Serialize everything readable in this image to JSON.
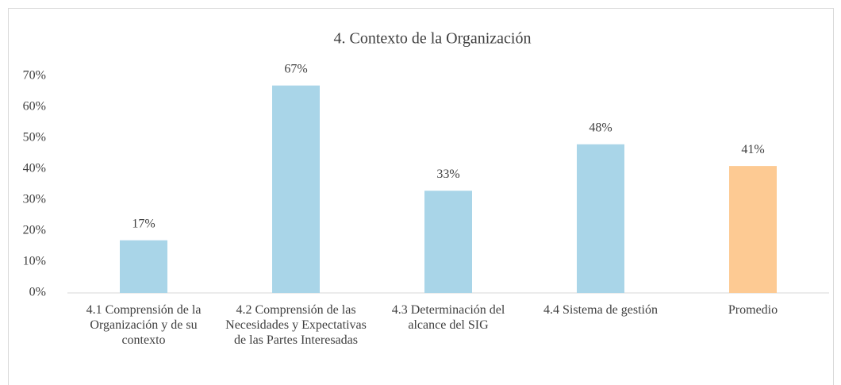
{
  "chart_data": {
    "type": "bar",
    "title": "4. Contexto de la Organización",
    "categories": [
      "4.1 Comprensión de la Organización y de su contexto",
      "4.2 Comprensión de las Necesidades y Expectativas de las Partes Interesadas",
      "4.3 Determinación del alcance del SIG",
      "4.4 Sistema de gestión",
      "Promedio"
    ],
    "values": [
      17,
      67,
      33,
      48,
      41
    ],
    "value_labels": [
      "17%",
      "67%",
      "33%",
      "48%",
      "41%"
    ],
    "colors": [
      "#a9d5e8",
      "#a9d5e8",
      "#a9d5e8",
      "#a9d5e8",
      "#fdca93"
    ],
    "ylim": [
      0,
      70
    ],
    "yticks": [
      {
        "value": 0,
        "label": "0%"
      },
      {
        "value": 10,
        "label": "10%"
      },
      {
        "value": 20,
        "label": "20%"
      },
      {
        "value": 30,
        "label": "30%"
      },
      {
        "value": 40,
        "label": "40%"
      },
      {
        "value": 50,
        "label": "50%"
      },
      {
        "value": 60,
        "label": "60%"
      },
      {
        "value": 70,
        "label": "70%"
      }
    ],
    "grid": false
  }
}
